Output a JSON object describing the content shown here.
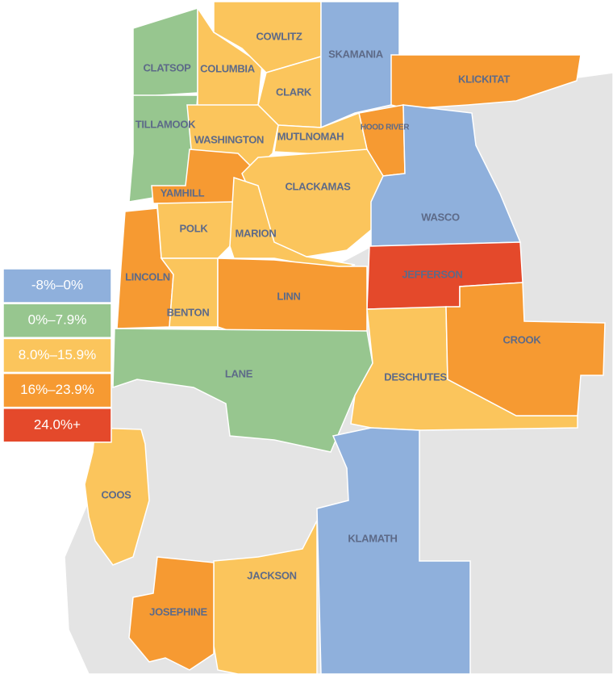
{
  "legend": [
    {
      "label": "-8%–0%",
      "color": "#8fb0dc"
    },
    {
      "label": "0%–7.9%",
      "color": "#97c68f"
    },
    {
      "label": "8.0%–15.9%",
      "color": "#fbc55c"
    },
    {
      "label": "16%–23.9%",
      "color": "#f69a32"
    },
    {
      "label": "24.0%+",
      "color": "#e4492b"
    }
  ],
  "counties": [
    {
      "name": "CLATSOP",
      "color": "#97c68f"
    },
    {
      "name": "TILLAMOOK",
      "color": "#97c68f"
    },
    {
      "name": "COLUMBIA",
      "color": "#fbc55c"
    },
    {
      "name": "COWLITZ",
      "color": "#fbc55c"
    },
    {
      "name": "CLARK",
      "color": "#fbc55c"
    },
    {
      "name": "SKAMANIA",
      "color": "#8fb0dc"
    },
    {
      "name": "KLICKITAT",
      "color": "#f69a32"
    },
    {
      "name": "HOOD RIVER",
      "color": "#f69a32"
    },
    {
      "name": "WASHINGTON",
      "color": "#fbc55c"
    },
    {
      "name": "MUTLNOMAH",
      "color": "#fbc55c"
    },
    {
      "name": "YAMHILL",
      "color": "#f69a32"
    },
    {
      "name": "CLACKAMAS",
      "color": "#fbc55c"
    },
    {
      "name": "POLK",
      "color": "#fbc55c"
    },
    {
      "name": "MARION",
      "color": "#fbc55c"
    },
    {
      "name": "WASCO",
      "color": "#8fb0dc"
    },
    {
      "name": "JEFFERSON",
      "color": "#e4492b"
    },
    {
      "name": "LINCOLN",
      "color": "#f69a32"
    },
    {
      "name": "BENTON",
      "color": "#fbc55c"
    },
    {
      "name": "LINN",
      "color": "#f69a32"
    },
    {
      "name": "LANE",
      "color": "#97c68f"
    },
    {
      "name": "DESCHUTES",
      "color": "#fbc55c"
    },
    {
      "name": "CROOK",
      "color": "#f69a32"
    },
    {
      "name": "KLAMATH",
      "color": "#8fb0dc"
    },
    {
      "name": "COOS",
      "color": "#fbc55c"
    },
    {
      "name": "JACKSON",
      "color": "#fbc55c"
    },
    {
      "name": "JOSEPHINE",
      "color": "#f69a32"
    }
  ]
}
